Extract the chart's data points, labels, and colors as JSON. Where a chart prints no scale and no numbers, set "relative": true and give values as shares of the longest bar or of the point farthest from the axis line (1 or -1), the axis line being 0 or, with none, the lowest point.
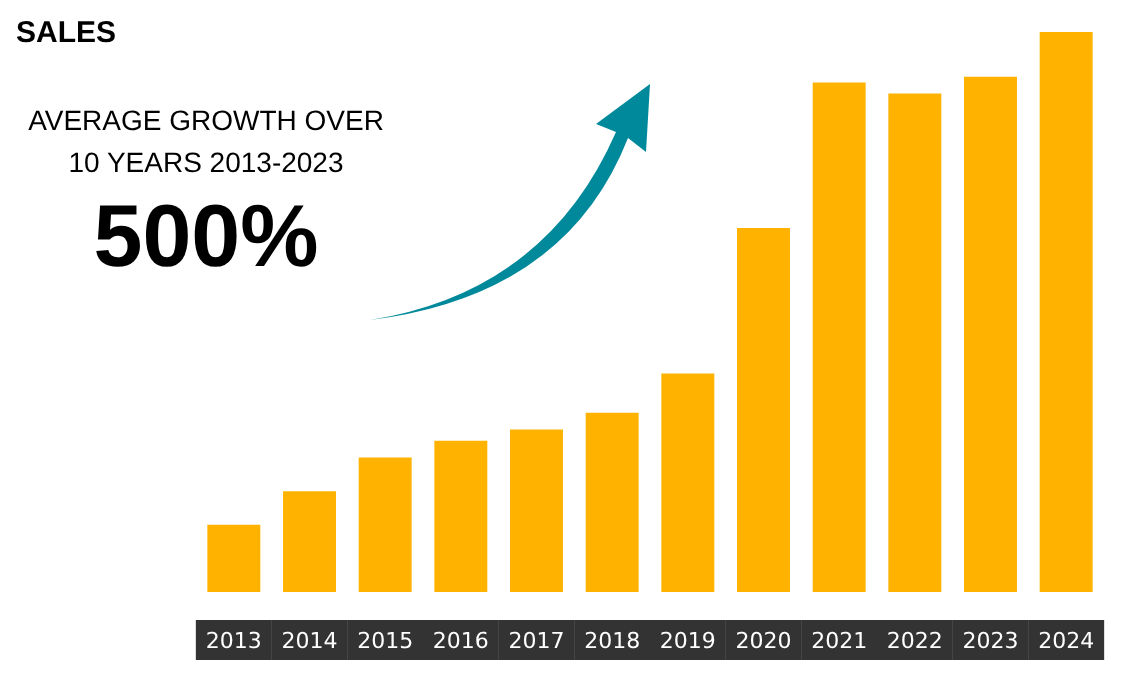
{
  "chart_data": {
    "type": "bar",
    "title": "SALES",
    "relative": true,
    "color": "#ffb300",
    "categories": [
      "2013",
      "2014",
      "2015",
      "2016",
      "2017",
      "2018",
      "2019",
      "2020",
      "2021",
      "2022",
      "2023",
      "2024"
    ],
    "values": [
      0.12,
      0.18,
      0.24,
      0.27,
      0.29,
      0.32,
      0.39,
      0.65,
      0.91,
      0.89,
      0.92,
      1
    ],
    "annotations": [
      "AVERAGE GROWTH OVER\n10 YEARS 2013-2023",
      "500%"
    ]
  }
}
